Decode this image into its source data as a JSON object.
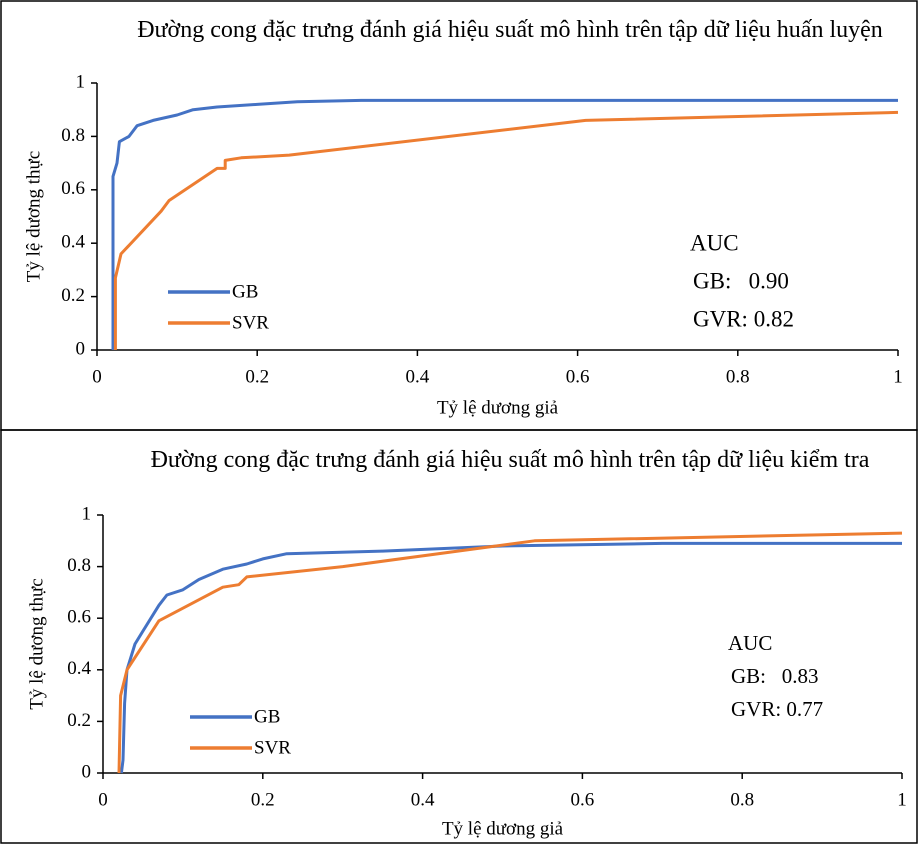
{
  "chart_data": [
    {
      "type": "line",
      "title": "Đường cong đặc trưng đánh giá hiệu suất mô hình  trên tập dữ liệu huấn luyện",
      "x_label": "Tỷ lệ dương giả",
      "y_label": "Tỷ lệ dương thực",
      "xlim": [
        0,
        1
      ],
      "ylim": [
        0,
        1
      ],
      "xticks": [
        0,
        0.2,
        0.4,
        0.6,
        0.8,
        1
      ],
      "yticks": [
        0,
        0.2,
        0.4,
        0.6,
        0.8,
        1
      ],
      "annotations": [
        "AUC",
        "GB:   0.90",
        "GVR: 0.82"
      ],
      "series": [
        {
          "name": "GB",
          "color": "#4472c4",
          "x": [
            0.02,
            0.02,
            0.025,
            0.028,
            0.04,
            0.05,
            0.07,
            0.1,
            0.12,
            0.15,
            0.2,
            0.25,
            0.33,
            1
          ],
          "values": [
            0,
            0.65,
            0.7,
            0.78,
            0.8,
            0.84,
            0.86,
            0.88,
            0.9,
            0.91,
            0.92,
            0.93,
            0.935,
            0.935
          ]
        },
        {
          "name": "SVR",
          "color": "#ed7d31",
          "x": [
            0.023,
            0.023,
            0.03,
            0.08,
            0.09,
            0.15,
            0.16,
            0.16,
            0.18,
            0.24,
            0.61,
            1
          ],
          "values": [
            0,
            0.27,
            0.36,
            0.52,
            0.56,
            0.68,
            0.68,
            0.71,
            0.72,
            0.73,
            0.86,
            0.89
          ]
        }
      ]
    },
    {
      "type": "line",
      "title": "Đường cong đặc trưng đánh giá hiệu suất mô hình  trên tập dữ liệu kiểm tra",
      "x_label": "Tỷ lệ dương giả",
      "y_label": "Tỷ lệ dương thực",
      "xlim": [
        0,
        1
      ],
      "ylim": [
        0,
        1
      ],
      "xticks": [
        0,
        0.2,
        0.4,
        0.6,
        0.8,
        1
      ],
      "yticks": [
        0,
        0.2,
        0.4,
        0.6,
        0.8,
        1
      ],
      "annotations": [
        "AUC",
        "GB:   0.83",
        "GVR: 0.77"
      ],
      "series": [
        {
          "name": "GB",
          "color": "#4472c4",
          "x": [
            0.023,
            0.025,
            0.027,
            0.03,
            0.04,
            0.05,
            0.07,
            0.08,
            0.1,
            0.12,
            0.15,
            0.18,
            0.2,
            0.23,
            0.35,
            0.5,
            0.7,
            1
          ],
          "values": [
            0,
            0.05,
            0.27,
            0.4,
            0.5,
            0.55,
            0.65,
            0.69,
            0.71,
            0.75,
            0.79,
            0.81,
            0.83,
            0.85,
            0.86,
            0.88,
            0.89,
            0.89
          ]
        },
        {
          "name": "SVR",
          "color": "#ed7d31",
          "x": [
            0.02,
            0.022,
            0.03,
            0.07,
            0.15,
            0.17,
            0.18,
            0.3,
            0.54,
            1
          ],
          "values": [
            0,
            0.3,
            0.4,
            0.59,
            0.72,
            0.73,
            0.76,
            0.8,
            0.9,
            0.93
          ]
        }
      ]
    }
  ]
}
